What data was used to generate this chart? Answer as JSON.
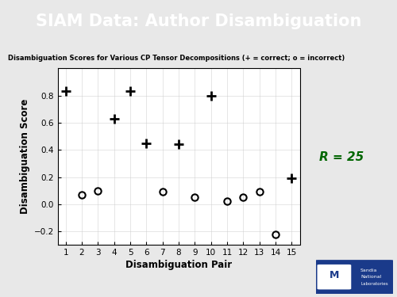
{
  "title": "SIAM Data: Author Disambiguation",
  "subtitle": "Disambiguation Scores for Various CP Tensor Decompositions (+ = correct; o = incorrect)",
  "xlabel": "Disambiguation Pair",
  "ylabel": "Disambiguation Score",
  "r_label": "R = 25",
  "background_color": "#f0f0f0",
  "title_bg_color": "#1a3a8a",
  "title_text_color": "#ffffff",
  "plus_points": [
    [
      1,
      0.83
    ],
    [
      4,
      0.63
    ],
    [
      5,
      0.83
    ],
    [
      6,
      0.45
    ],
    [
      8,
      0.44
    ],
    [
      10,
      0.8
    ],
    [
      15,
      0.19
    ]
  ],
  "circle_points": [
    [
      2,
      0.07
    ],
    [
      3,
      0.1
    ],
    [
      7,
      0.09
    ],
    [
      9,
      0.05
    ],
    [
      11,
      0.02
    ],
    [
      12,
      0.05
    ],
    [
      13,
      0.09
    ],
    [
      14,
      -0.22
    ]
  ],
  "xlim": [
    0.5,
    15.5
  ],
  "ylim": [
    -0.3,
    1.0
  ],
  "yticks": [
    -0.2,
    0.0,
    0.2,
    0.4,
    0.6,
    0.8
  ],
  "xticks": [
    1,
    2,
    3,
    4,
    5,
    6,
    7,
    8,
    9,
    10,
    11,
    12,
    13,
    14,
    15
  ]
}
